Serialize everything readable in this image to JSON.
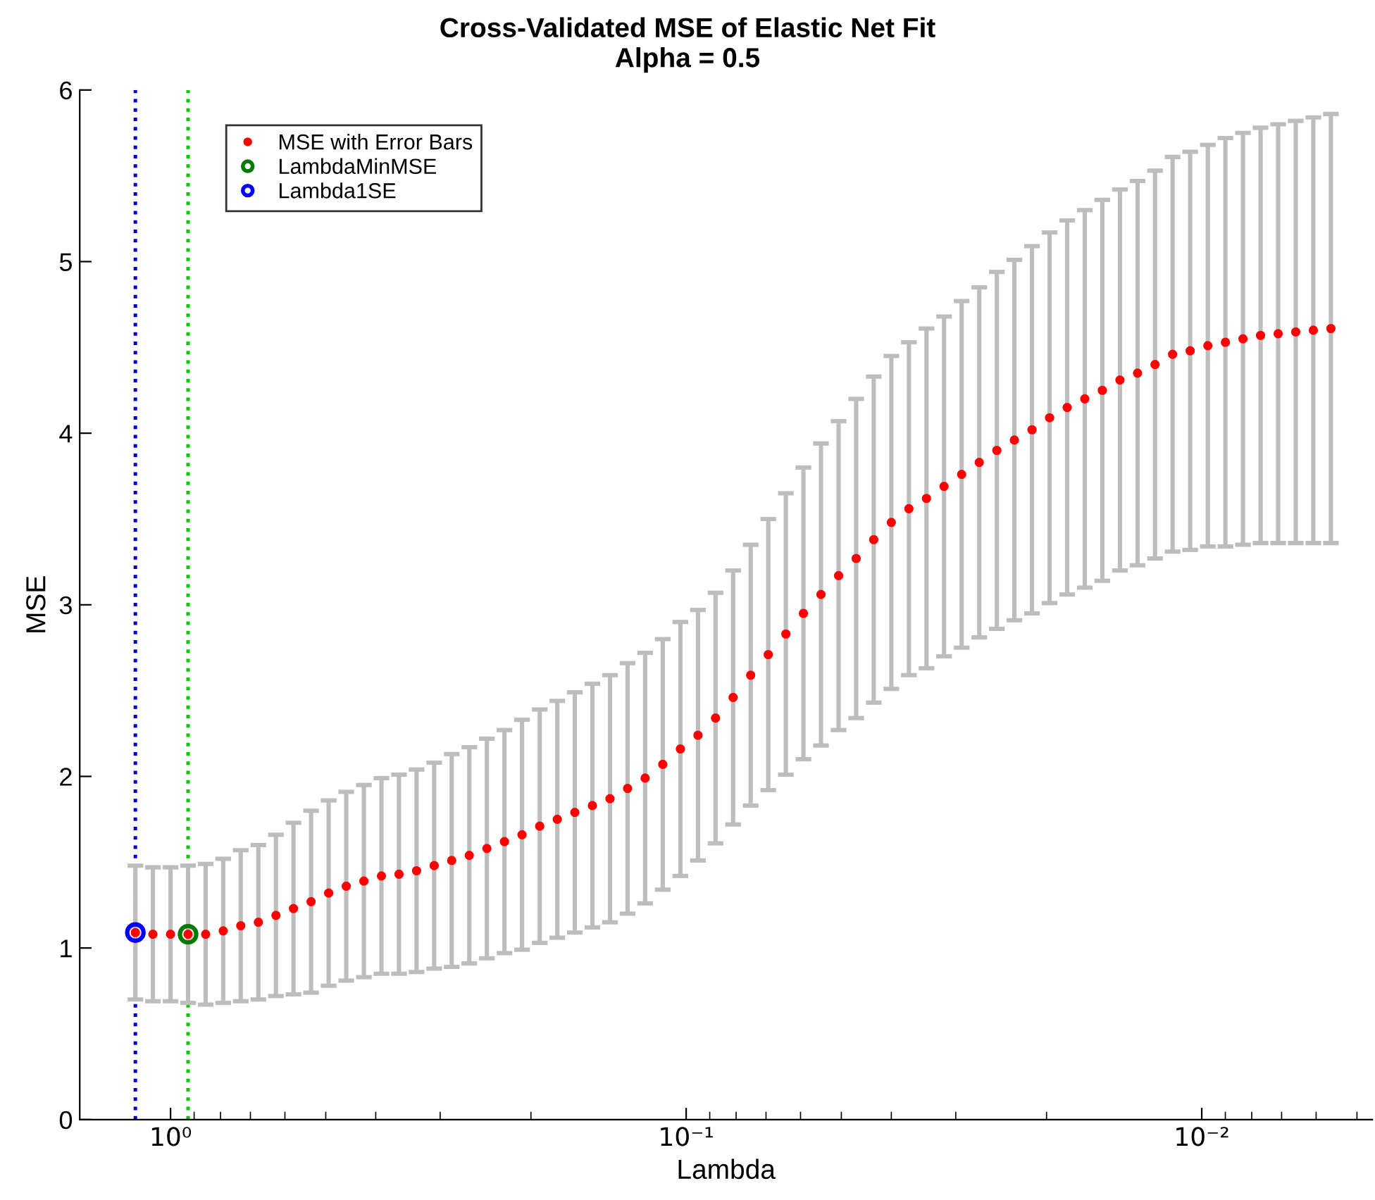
{
  "chart_data": {
    "type": "scatter",
    "title": "Cross-Validated MSE of Elastic Net Fit",
    "subtitle": "Alpha = 0.5",
    "xlabel": "Lambda",
    "ylabel": "MSE",
    "log": "x",
    "xlim": [
      1.5,
      0.00467
    ],
    "xticks": [
      {
        "value": 1,
        "label": "10⁰"
      },
      {
        "value": 0.1,
        "label": "10⁻¹"
      },
      {
        "value": 0.01,
        "label": "10⁻²"
      }
    ],
    "ylim": [
      0,
      6
    ],
    "yticks": [
      0,
      1,
      2,
      3,
      4,
      5,
      6
    ],
    "grid": false,
    "legend": "top left",
    "marker": "circle",
    "series": [
      {
        "name": "MSE with Error Bars",
        "color": "#ff0000",
        "x": [
          1.17,
          1.082,
          1.0,
          0.9247,
          0.8549,
          0.7904,
          0.7308,
          0.6756,
          0.6246,
          0.5775,
          0.5339,
          0.4936,
          0.4563,
          0.4217,
          0.3899,
          0.3605,
          0.3333,
          0.3081,
          0.2849,
          0.2634,
          0.2435,
          0.2251,
          0.2081,
          0.1923,
          0.1778,
          0.1644,
          0.152,
          0.1405,
          0.1299,
          0.1201,
          0.111,
          0.1026,
          0.09486,
          0.0877,
          0.08108,
          0.07496,
          0.0693,
          0.06406,
          0.05923,
          0.05476,
          0.05062,
          0.0468,
          0.04327,
          0.04,
          0.03698,
          0.03419,
          0.03161,
          0.02922,
          0.02701,
          0.02497,
          0.02309,
          0.02134,
          0.01973,
          0.01824,
          0.01686,
          0.01559,
          0.01441,
          0.01332,
          0.01232,
          0.01139,
          0.01053,
          0.009732,
          0.008997,
          0.008318,
          0.00769,
          0.007109,
          0.006572,
          0.006076,
          0.005617
        ],
        "values": [
          1.09,
          1.08,
          1.08,
          1.08,
          1.08,
          1.1,
          1.13,
          1.15,
          1.19,
          1.23,
          1.27,
          1.32,
          1.36,
          1.39,
          1.42,
          1.43,
          1.45,
          1.48,
          1.51,
          1.54,
          1.58,
          1.62,
          1.66,
          1.71,
          1.75,
          1.79,
          1.83,
          1.87,
          1.93,
          1.99,
          2.07,
          2.16,
          2.24,
          2.34,
          2.46,
          2.59,
          2.71,
          2.83,
          2.95,
          3.06,
          3.17,
          3.27,
          3.38,
          3.48,
          3.56,
          3.62,
          3.69,
          3.76,
          3.83,
          3.9,
          3.96,
          4.02,
          4.09,
          4.15,
          4.2,
          4.25,
          4.31,
          4.35,
          4.4,
          4.46,
          4.48,
          4.51,
          4.53,
          4.55,
          4.57,
          4.58,
          4.59,
          4.6,
          4.61
        ],
        "errors": [
          0.39,
          0.39,
          0.39,
          0.4,
          0.41,
          0.42,
          0.44,
          0.45,
          0.47,
          0.5,
          0.53,
          0.54,
          0.55,
          0.56,
          0.57,
          0.58,
          0.59,
          0.6,
          0.62,
          0.63,
          0.64,
          0.65,
          0.67,
          0.68,
          0.69,
          0.7,
          0.71,
          0.72,
          0.73,
          0.73,
          0.73,
          0.74,
          0.73,
          0.73,
          0.74,
          0.76,
          0.79,
          0.82,
          0.85,
          0.88,
          0.9,
          0.93,
          0.95,
          0.97,
          0.97,
          0.99,
          0.99,
          1.01,
          1.02,
          1.04,
          1.05,
          1.07,
          1.08,
          1.09,
          1.1,
          1.11,
          1.11,
          1.12,
          1.13,
          1.15,
          1.16,
          1.17,
          1.19,
          1.2,
          1.21,
          1.22,
          1.23,
          1.24,
          1.25
        ]
      },
      {
        "name": "LambdaMinMSE",
        "color": "#007a00",
        "x": [
          0.9247
        ],
        "values": [
          1.08
        ]
      },
      {
        "name": "Lambda1SE",
        "color": "#0000ff",
        "x": [
          1.17
        ],
        "values": [
          1.09
        ]
      }
    ],
    "ref_lines": [
      {
        "axis": "x",
        "value": 1.17,
        "color": "#0000cc",
        "line_style": "dotted"
      },
      {
        "axis": "x",
        "value": 0.9247,
        "color": "#00cc00",
        "line_style": "dotted"
      }
    ]
  }
}
